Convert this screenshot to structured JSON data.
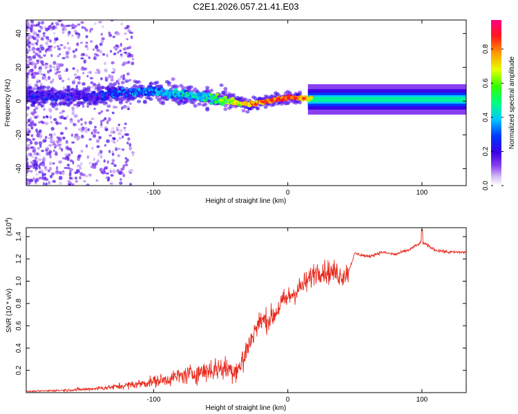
{
  "title": "C2E1.2026.057.21.41.E03",
  "chart_data": [
    {
      "type": "heatmap",
      "xlabel": "Height of straight line (km)",
      "ylabel": "Frequency (Hz)",
      "xlim": [
        -195,
        133
      ],
      "ylim": [
        -50,
        48
      ],
      "x_ticks": [
        -100,
        0,
        100
      ],
      "y_ticks": [
        -40,
        -20,
        0,
        20,
        40
      ],
      "colorbar": {
        "label": "Normalized spectral amplitude",
        "range": [
          0,
          0.97
        ],
        "ticks": [
          0.0,
          0.2,
          0.4,
          0.6,
          0.8
        ]
      },
      "description_points": [
        {
          "x": -150,
          "y": 3,
          "amp": 0.18
        },
        {
          "x": -100,
          "y": 6,
          "amp": 0.35
        },
        {
          "x": -60,
          "y": 2,
          "amp": 0.45
        },
        {
          "x": -30,
          "y": -2,
          "amp": 0.75
        },
        {
          "x": 0,
          "y": 2,
          "amp": 0.9
        },
        {
          "x": 50,
          "y": 1,
          "amp": 0.45
        },
        {
          "x": 100,
          "y": 1,
          "amp": 0.45
        },
        {
          "x": 133,
          "y": 1,
          "amp": 0.45
        }
      ]
    },
    {
      "type": "line",
      "xlabel": "Height of straight line (km)",
      "ylabel": "SNR (10 * v/v)",
      "y_multiplier": "(x10",
      "y_multiplier_exp": "4",
      "y_multiplier_close": ")",
      "xlim": [
        -195,
        133
      ],
      "ylim": [
        0,
        1.48
      ],
      "x_ticks": [
        -100,
        0,
        100
      ],
      "y_ticks": [
        0.2,
        0.4,
        0.6,
        0.8,
        1.0,
        1.2,
        1.4
      ],
      "series": [
        {
          "name": "SNR",
          "color": "#e8291c",
          "x": [
            -195,
            -170,
            -150,
            -130,
            -110,
            -90,
            -80,
            -70,
            -60,
            -50,
            -40,
            -35,
            -30,
            -25,
            -20,
            -15,
            -10,
            -5,
            0,
            5,
            10,
            15,
            20,
            25,
            30,
            35,
            40,
            45,
            50,
            60,
            70,
            80,
            90,
            100,
            110,
            120,
            133
          ],
          "y": [
            0.01,
            0.02,
            0.03,
            0.05,
            0.08,
            0.12,
            0.15,
            0.17,
            0.2,
            0.22,
            0.2,
            0.24,
            0.4,
            0.55,
            0.65,
            0.65,
            0.7,
            0.8,
            0.85,
            0.9,
            0.95,
            1.0,
            1.08,
            1.1,
            1.08,
            1.08,
            1.05,
            1.08,
            1.25,
            1.22,
            1.26,
            1.24,
            1.28,
            1.35,
            1.28,
            1.26,
            1.26
          ]
        }
      ]
    }
  ]
}
